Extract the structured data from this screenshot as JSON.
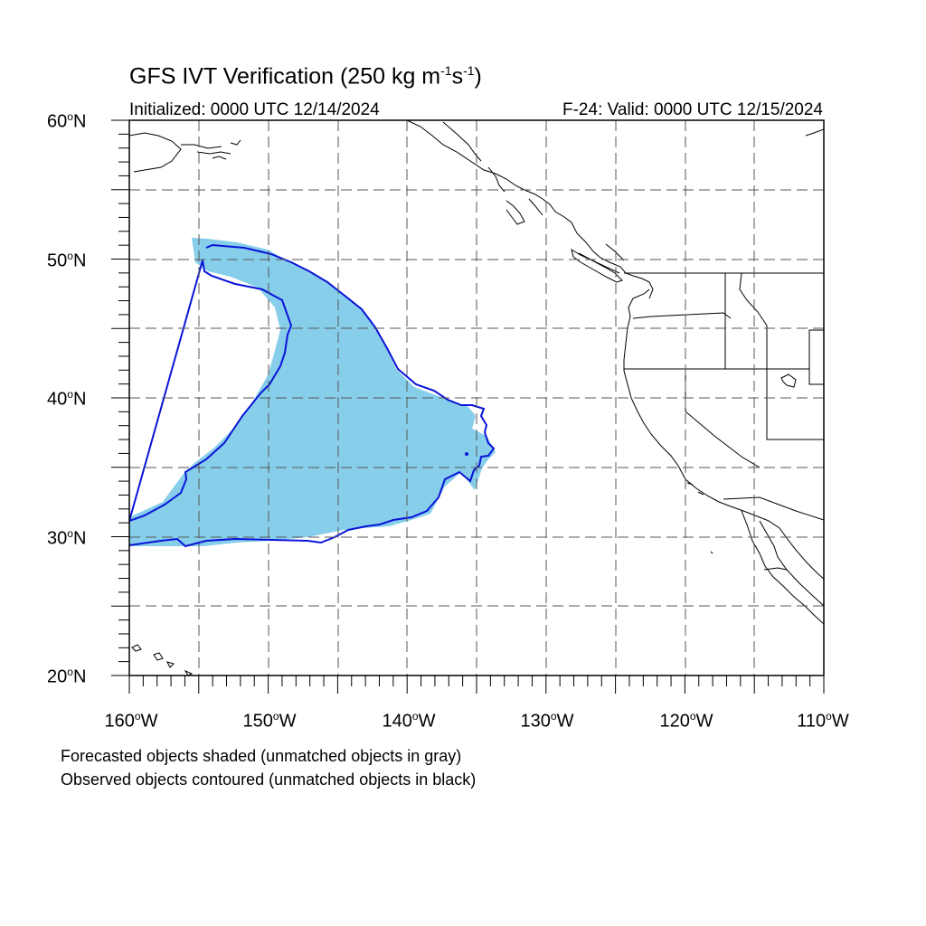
{
  "figure": {
    "title_main": "GFS IVT Verification (250 kg m",
    "title_exp1": "-1",
    "title_mid": "s",
    "title_exp2": "-1",
    "title_end": ")",
    "initialized": "Initialized: 0000 UTC 12/14/2024",
    "valid": "F-24: Valid: 0000 UTC 12/15/2024"
  },
  "axes": {
    "lat_labels": [
      {
        "num": "60",
        "sfx": "N"
      },
      {
        "num": "50",
        "sfx": "N"
      },
      {
        "num": "40",
        "sfx": "N"
      },
      {
        "num": "30",
        "sfx": "N"
      },
      {
        "num": "20",
        "sfx": "N"
      }
    ],
    "lon_labels": [
      {
        "num": "160",
        "sfx": "W"
      },
      {
        "num": "150",
        "sfx": "W"
      },
      {
        "num": "140",
        "sfx": "W"
      },
      {
        "num": "130",
        "sfx": "W"
      },
      {
        "num": "120",
        "sfx": "W"
      },
      {
        "num": "110",
        "sfx": "W"
      }
    ],
    "deg_symbol": "o"
  },
  "legend": {
    "line1": "Forecasted objects shaded (unmatched objects in gray)",
    "line2": "Observed objects contoured (unmatched objects in black)"
  },
  "colors": {
    "forecast_fill": "#87ceeb",
    "observed_contour": "#0a14d8",
    "coastline": "#000000",
    "grid": "#555555"
  }
}
